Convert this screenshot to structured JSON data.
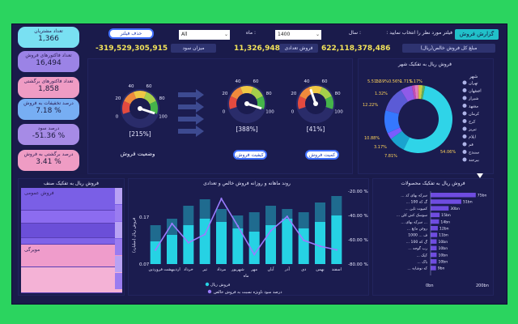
{
  "header": {
    "report_tab": "گزارش فروش",
    "filter_prompt": "فیلتر مورد نظر را انتخاب نمایید :",
    "year_label": "سال :",
    "year_value": "1400",
    "month_label": "ماه :",
    "month_value": "All",
    "reset_button": "حذف فیلتر"
  },
  "summary": {
    "total_sales_label": "مبلغ کل فروش خالص(ریال)",
    "total_sales_value": "622,118,378,486",
    "invoice_label": "فروش تعدادی",
    "invoice_value": "11,326,948",
    "profit_label": "میزان سود",
    "profit_value": "-319,529,305,915"
  },
  "kpis": [
    {
      "label": "تعداد مشتریان",
      "value": "1,366",
      "color": "#79e0f2"
    },
    {
      "label": "تعداد فاکتورهای فروش",
      "value": "16,494",
      "color": "#9b83e6"
    },
    {
      "label": "تعداد فاکتورهای برگشتی",
      "value": "1,858",
      "color": "#ef9cc4"
    },
    {
      "label": "درصد تخفیفات به فروش",
      "value": "7.18 %",
      "color": "#77aef3"
    },
    {
      "label": "درصد سود",
      "value": "-51.36 %",
      "color": "#a68be6"
    },
    {
      "label": "درصد برگشتی به فروش",
      "value": "3.41 %",
      "color": "#ef9cc4"
    }
  ],
  "gauges": [
    {
      "pct": "[215%]",
      "label": "وضعیت فروش",
      "value": 1.0
    },
    {
      "pct": "[388%]",
      "label": "کیفیت فروش",
      "value": 1.0
    },
    {
      "pct": "[41%]",
      "label": "کمیت فروش",
      "value": 0.41
    }
  ],
  "gauge_ticks": [
    "0",
    "20",
    "40",
    "60",
    "80",
    "100"
  ],
  "donut": {
    "title": "فروش ریال به تفکیک شهر",
    "legend_title": "شهر",
    "legend": [
      "تهران",
      "اصفهان",
      "شیراز",
      "مشهد",
      "کرمان",
      "کرج",
      "تبریز",
      "ایلام",
      "قم",
      "سنندج",
      "بیرجند"
    ],
    "slices": [
      {
        "value": 54.06,
        "label": "54.06%",
        "color": "#2fd4e8"
      },
      {
        "value": 7.81,
        "label": "7.81%",
        "color": "#1aa3cf"
      },
      {
        "value": 3.17,
        "label": "3.17%",
        "color": "#7a5cff"
      },
      {
        "value": 10.88,
        "label": "10.88%",
        "color": "#3578ff"
      },
      {
        "value": 12.22,
        "label": "12.22%",
        "color": "#5b5bd6"
      },
      {
        "value": 5.51,
        "label": "5.51%",
        "color": "#8f5be8"
      },
      {
        "value": 1.32,
        "label": "1.32%",
        "color": "#c34ab5"
      },
      {
        "value": 1.71,
        "label": "1.71%",
        "color": "#e07ac0"
      },
      {
        "value": 0.56,
        "label": "0.56%",
        "color": "#f0a25b"
      },
      {
        "value": 1.59,
        "label": "1.59%",
        "color": "#c9c94b"
      },
      {
        "value": 1.17,
        "label": "1.17%",
        "color": "#5fb05b"
      }
    ]
  },
  "treemap": {
    "title": "فروش ریال به تفکیک صنف",
    "blocks": [
      {
        "label": "فروش عمومی",
        "color": "#7a5fe6"
      },
      {
        "label": "",
        "color": "#8c6cf0"
      },
      {
        "label": "",
        "color": "#6b4fd8"
      },
      {
        "label": "",
        "color": "#7f63e9"
      },
      {
        "label": "مویرگی",
        "color": "#ef9ccb"
      },
      {
        "label": "",
        "color": "#f4b2d6"
      }
    ]
  },
  "combo_chart": {
    "title": "روند ماهانه و روزانه فروش خالص و تعدادی",
    "y_title": "فروش ریال (میلیارد)",
    "left_ticks": [
      "0.17",
      "0.07"
    ],
    "right_ticks": [
      "-20.00 %",
      "-40.00 %",
      "-60.00 %",
      "-80.00 %"
    ],
    "x_title": "ماه",
    "legend_bar": "فروش ریال",
    "legend_line": "درصد سود ناویژه نسبت به فروش خالص"
  },
  "chart_data": {
    "type": "bar",
    "categories": [
      "فروردین",
      "اردیبهشت",
      "خرداد",
      "تیر",
      "مرداد",
      "شهریور",
      "مهر",
      "آبان",
      "آذر",
      "دی",
      "بهمن",
      "اسفند"
    ],
    "series": [
      {
        "name": "فروش ریال",
        "values": [
          0.07,
          0.09,
          0.12,
          0.14,
          0.13,
          0.11,
          0.1,
          0.12,
          0.14,
          0.11,
          0.13,
          0.15
        ]
      },
      {
        "name": "",
        "values": [
          0.12,
          0.14,
          0.18,
          0.2,
          0.17,
          0.15,
          0.16,
          0.18,
          0.17,
          0.16,
          0.19,
          0.21
        ]
      },
      {
        "name": "درصد سود ناویژه نسبت به فروش خالص",
        "values": [
          -68,
          -46,
          -62,
          -55,
          -25,
          -48,
          -72,
          -52,
          -40,
          -60,
          -65,
          -68
        ]
      }
    ]
  },
  "hbar": {
    "title": "فروش ریال به تفکیک محصولات",
    "items": [
      {
        "label": "... سرکه بهای کد",
        "value": 75,
        "text": "75bn"
      },
      {
        "label": "... 100 گ که",
        "value": 51,
        "text": "51bn"
      },
      {
        "label": "... کمپوت تاپن",
        "value": 30,
        "text": "30bn"
      },
      {
        "label": "... سوسک کش کلن",
        "value": 15,
        "text": "15bn"
      },
      {
        "label": "... سرکه بهای ...",
        "value": 14,
        "text": "14bn"
      },
      {
        "label": "... روغن مایع",
        "value": 12,
        "text": "12bn"
      },
      {
        "label": "1000 ... ف",
        "value": 11,
        "text": "11bn"
      },
      {
        "label": "... 100 گ که",
        "value": 10,
        "text": "10bn"
      },
      {
        "label": "... رب گوجه",
        "value": 10,
        "text": "10bn"
      },
      {
        "label": "... کیک",
        "value": 10,
        "text": "10bn"
      },
      {
        "label": "... پاک",
        "value": 10,
        "text": "10bn"
      },
      {
        "label": "... که نوشابه",
        "value": 9,
        "text": "9bn"
      }
    ],
    "axis": [
      "0bn",
      "200bn"
    ]
  }
}
